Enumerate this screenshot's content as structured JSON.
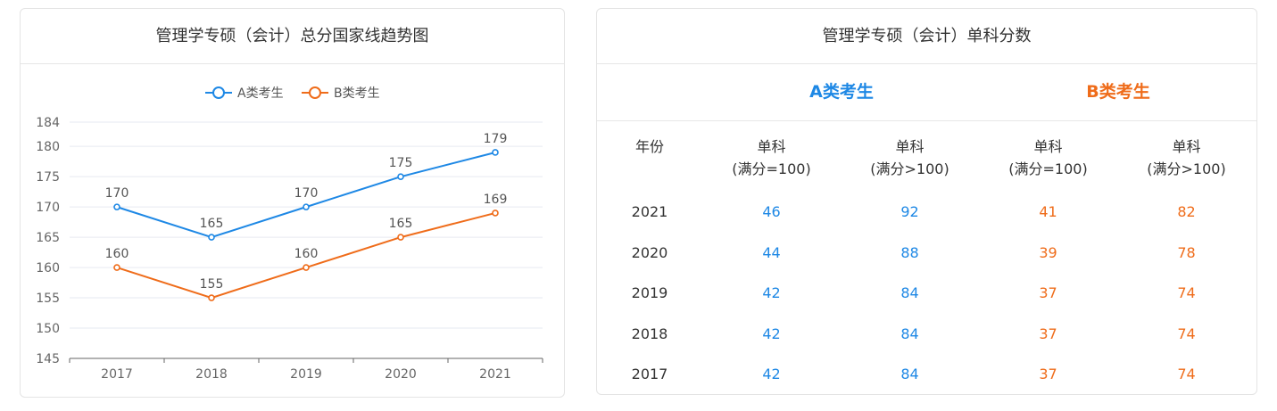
{
  "colors": {
    "series_a": "#1e88e5",
    "series_b": "#ef6c1a",
    "grid": "#e6e9f0",
    "axis": "#666666"
  },
  "left_panel": {
    "title": "管理学专硕（会计）总分国家线趋势图"
  },
  "chart_data": {
    "type": "line",
    "categories": [
      "2017",
      "2018",
      "2019",
      "2020",
      "2021"
    ],
    "series": [
      {
        "name": "A类考生",
        "values": [
          170,
          165,
          170,
          175,
          179
        ]
      },
      {
        "name": "B类考生",
        "values": [
          160,
          155,
          160,
          165,
          169
        ]
      }
    ],
    "title": "管理学专硕（会计）总分国家线趋势图",
    "xlabel": "",
    "ylabel": "",
    "ylim": [
      145,
      184
    ],
    "yticks": [
      145,
      150,
      155,
      160,
      165,
      170,
      175,
      180,
      184
    ],
    "legend": "top-center",
    "grid": true,
    "data_labels": true
  },
  "right_panel": {
    "title": "管理学专硕（会计）单科分数",
    "group_a": "A类考生",
    "group_b": "B类考生",
    "headers": [
      "年份",
      "单科",
      "(满分=100)",
      "单科",
      "(满分>100)",
      "单科",
      "(满分=100)",
      "单科",
      "(满分>100)"
    ],
    "rows": [
      {
        "year": "2021",
        "a1": "46",
        "a2": "92",
        "b1": "41",
        "b2": "82"
      },
      {
        "year": "2020",
        "a1": "44",
        "a2": "88",
        "b1": "39",
        "b2": "78"
      },
      {
        "year": "2019",
        "a1": "42",
        "a2": "84",
        "b1": "37",
        "b2": "74"
      },
      {
        "year": "2018",
        "a1": "42",
        "a2": "84",
        "b1": "37",
        "b2": "74"
      },
      {
        "year": "2017",
        "a1": "42",
        "a2": "84",
        "b1": "37",
        "b2": "74"
      }
    ]
  }
}
